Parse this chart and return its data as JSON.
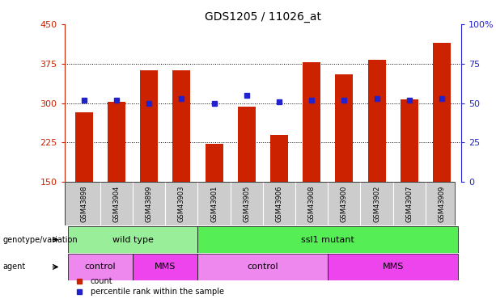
{
  "title": "GDS1205 / 11026_at",
  "samples": [
    "GSM43898",
    "GSM43904",
    "GSM43899",
    "GSM43903",
    "GSM43901",
    "GSM43905",
    "GSM43906",
    "GSM43908",
    "GSM43900",
    "GSM43902",
    "GSM43907",
    "GSM43909"
  ],
  "count_values": [
    283,
    302,
    363,
    363,
    223,
    293,
    240,
    378,
    355,
    382,
    307,
    415
  ],
  "percentile_values": [
    52,
    52,
    50,
    53,
    50,
    55,
    51,
    52,
    52,
    53,
    52,
    53
  ],
  "y_min": 150,
  "y_max": 450,
  "y_ticks": [
    150,
    225,
    300,
    375,
    450
  ],
  "right_y_ticks": [
    0,
    25,
    50,
    75,
    100
  ],
  "bar_color": "#cc2200",
  "marker_color": "#2222cc",
  "genotype_row": [
    {
      "label": "wild type",
      "start": 0,
      "end": 4,
      "color": "#99ee99"
    },
    {
      "label": "ssl1 mutant",
      "start": 4,
      "end": 12,
      "color": "#55ee55"
    }
  ],
  "agent_row": [
    {
      "label": "control",
      "start": 0,
      "end": 2,
      "color": "#ee88ee"
    },
    {
      "label": "MMS",
      "start": 2,
      "end": 4,
      "color": "#ee44ee"
    },
    {
      "label": "control",
      "start": 4,
      "end": 8,
      "color": "#ee88ee"
    },
    {
      "label": "MMS",
      "start": 8,
      "end": 12,
      "color": "#ee44ee"
    }
  ],
  "left_axis_color": "#cc2200",
  "right_axis_color": "#2222cc",
  "title_fontsize": 10
}
